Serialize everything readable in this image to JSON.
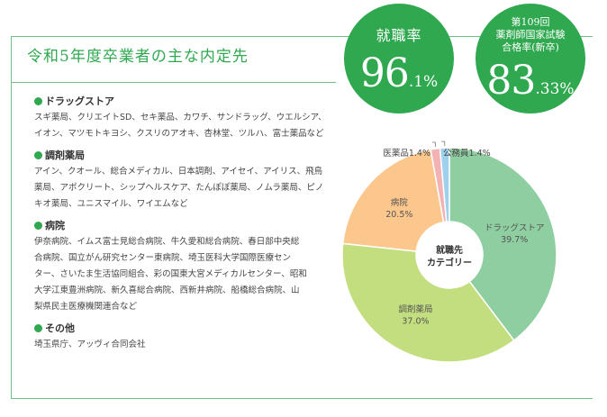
{
  "page_title": "令和5年度卒業者の主な内定先",
  "badges": {
    "employment": {
      "label": "就職率",
      "value_int": "96",
      "value_dec": ".1%"
    },
    "exam": {
      "line1": "第109回",
      "line2": "薬剤師国家試験",
      "line3": "合格率(新卒)",
      "value_int": "83",
      "value_dec": ".33%"
    }
  },
  "sections": [
    {
      "heading": "ドラッグストア",
      "lines": [
        "スギ薬局、クリエイトSD、セキ薬品、カワチ、サンドラッグ、ウエルシア、",
        "イオン、マツモトキヨシ、クスリのアオキ、杏林堂、ツルハ、富士薬品など"
      ]
    },
    {
      "heading": "調剤薬局",
      "lines": [
        "アイン、クオール、総合メディカル、日本調剤、アイセイ、アイリス、飛鳥",
        "薬局、アポクリート、シップヘルスケア、たんぽぽ薬局、ノムラ薬局、ピノ",
        "キオ薬局、ユニスマイル、ワイエムなど"
      ]
    },
    {
      "heading": "病院",
      "lines": [
        "伊奈病院、イムス富士見総合病院、牛久愛和総合病院、春日部中央総",
        "合病院、国立がん研究センター東病院、埼玉医科大学国際医療セン",
        "ター、さいたま生活協同組合、彩の国東大宮メディカルセンター、昭和",
        "大学江東豊洲病院、新久喜総合病院、西新井病院、船橋総合病院、山",
        "梨県民主医療機関連合など"
      ]
    },
    {
      "heading": "その他",
      "lines": [
        "埼玉県庁、アッヴィ合同会社"
      ]
    }
  ],
  "chart_data": {
    "type": "pie",
    "center_label": [
      "就職先",
      "カテゴリー"
    ],
    "categories": [
      "ドラッグストア",
      "調剤薬局",
      "病院",
      "医薬品",
      "公務員"
    ],
    "values": [
      39.7,
      37.0,
      20.5,
      1.4,
      1.4
    ],
    "value_labels": [
      "39.7%",
      "37.0%",
      "20.5%",
      "1.4%",
      "1.4%"
    ],
    "colors": [
      "#8fcea0",
      "#c3de7e",
      "#fbc78c",
      "#f3b2b3",
      "#9fd0ec"
    ]
  }
}
